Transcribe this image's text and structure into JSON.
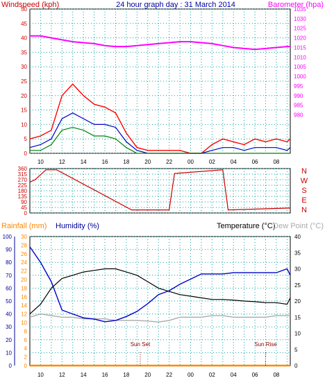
{
  "colors": {
    "wind": "#ff0000",
    "gust_area": "#ff0000",
    "wind_avg": "#0000cc",
    "wind_low": "#008000",
    "barometer": "#ff00ff",
    "direction": "#cc0000",
    "rain": "#ff8800",
    "humidity": "#0000cc",
    "temperature": "#000000",
    "dewpoint": "#aaaaaa",
    "hum_axis": "#000099",
    "grid": "#00a0a0"
  },
  "chart_data": [
    {
      "type": "line",
      "title": "24 hour graph day : 31 March 2014",
      "ylabel": "Windspeed (kph)",
      "y2label": "Barometer (hpa)",
      "ylim": [
        0,
        50
      ],
      "y2lim": [
        960,
        1035
      ],
      "x_ticks": [
        "10",
        "12",
        "14",
        "16",
        "18",
        "20",
        "22",
        "00",
        "02",
        "04",
        "06",
        "08"
      ],
      "y_ticks": [
        "0",
        "5",
        "10",
        "15",
        "20",
        "25",
        "30",
        "35",
        "40",
        "45",
        "50"
      ],
      "y2_ticks": [
        "980",
        "985",
        "990",
        "995",
        "1000",
        "1005",
        "1010",
        "1015",
        "1020",
        "1025",
        "1030",
        "1035"
      ],
      "x_hours": [
        9.0,
        10,
        11,
        12,
        13,
        14,
        15,
        16,
        17,
        18,
        19,
        20,
        21,
        22,
        23,
        24,
        25,
        26,
        27,
        28,
        29,
        30,
        31,
        32,
        33,
        33.3
      ],
      "series": [
        {
          "key": "gust",
          "values": [
            5,
            6,
            8,
            20,
            24,
            20,
            17,
            16,
            14,
            7,
            2,
            1,
            1,
            1,
            1,
            0,
            0,
            3,
            5,
            4,
            3,
            5,
            4,
            5,
            4,
            5
          ]
        },
        {
          "key": "avg",
          "values": [
            2,
            3,
            5,
            12,
            14,
            12,
            10,
            10,
            9,
            4,
            1,
            0,
            0,
            0,
            0,
            0,
            0,
            1,
            2,
            2,
            1,
            2,
            2,
            2,
            1,
            2
          ]
        },
        {
          "key": "low",
          "values": [
            1,
            1,
            3,
            8,
            9,
            8,
            6,
            6,
            5,
            2,
            0,
            0,
            0,
            0,
            0,
            0,
            0,
            0,
            0,
            0,
            0,
            0,
            0,
            0,
            0,
            0
          ]
        },
        {
          "key": "barometer",
          "values": [
            1021,
            1021,
            1020,
            1019,
            1018,
            1017.5,
            1017,
            1016,
            1015.5,
            1015.5,
            1016,
            1016.5,
            1017,
            1017.5,
            1018,
            1018,
            1017.5,
            1017,
            1016,
            1015,
            1014.5,
            1014,
            1014.5,
            1015,
            1015.5,
            1015.5
          ]
        }
      ]
    },
    {
      "type": "line",
      "ylabel_letters": [
        "N",
        "W",
        "S",
        "E",
        "N"
      ],
      "ylim": [
        0,
        360
      ],
      "y_ticks": [
        "0",
        "45",
        "90",
        "135",
        "180",
        "225",
        "270",
        "315",
        "360"
      ],
      "x_ticks": [
        "10",
        "12",
        "14",
        "16",
        "18",
        "20",
        "22",
        "00",
        "02",
        "04",
        "06",
        "08"
      ],
      "x_hours": [
        9.0,
        9.5,
        10.5,
        11,
        11.5,
        18.5,
        22,
        22.5,
        27,
        27.5,
        33.3
      ],
      "series": [
        {
          "key": "direction",
          "values": [
            250,
            270,
            350,
            350,
            350,
            25,
            25,
            320,
            350,
            25,
            40
          ]
        }
      ]
    },
    {
      "type": "line",
      "ylabel_rain": "Rainfall (mm)",
      "ylabel_humidity": "Humidity (%)",
      "y2label_temperature": "Temperature (°C)",
      "y2label_dewpoint": "Dew Point (°C)",
      "rain_ylim": [
        0,
        30
      ],
      "hum_ylim": [
        0,
        100
      ],
      "temp_ylim": [
        0,
        40
      ],
      "rain_ticks": [
        "0",
        "2",
        "4",
        "6",
        "8",
        "10",
        "12",
        "14",
        "16",
        "18",
        "20",
        "22",
        "24",
        "26",
        "28",
        "30"
      ],
      "hum_ticks": [
        "0",
        "10",
        "20",
        "30",
        "40",
        "50",
        "60",
        "70",
        "80",
        "90",
        "100"
      ],
      "temp_ticks": [
        "0",
        "5",
        "10",
        "15",
        "20",
        "25",
        "30",
        "35",
        "40"
      ],
      "x_ticks": [
        "10",
        "12",
        "14",
        "16",
        "18",
        "20",
        "22",
        "00",
        "02",
        "04",
        "06",
        "08"
      ],
      "annotations": [
        {
          "text": "Sun Set",
          "hour": 19.3
        },
        {
          "text": "Sun Rise",
          "hour": 31.0
        }
      ],
      "x_hours": [
        9.0,
        10,
        11,
        12,
        13,
        14,
        15,
        16,
        17,
        18,
        19,
        20,
        21,
        22,
        23,
        24,
        25,
        26,
        27,
        28,
        29,
        30,
        31,
        32,
        33,
        33.3
      ],
      "series": [
        {
          "key": "temperature",
          "values": [
            16,
            19,
            24,
            27,
            28,
            29,
            29.5,
            30,
            30,
            29,
            28,
            26,
            24,
            23,
            22,
            21.5,
            21,
            20.5,
            20.5,
            20.3,
            20,
            19.8,
            19.5,
            19.5,
            19,
            21
          ]
        },
        {
          "key": "dewpoint",
          "values": [
            15,
            16,
            15.5,
            15,
            15,
            14.5,
            14.5,
            14.5,
            14,
            14,
            14,
            13.8,
            13.5,
            14,
            15,
            15,
            15,
            15.5,
            15.5,
            15,
            15,
            15,
            15,
            15.5,
            15.5,
            15.5
          ]
        },
        {
          "key": "humidity",
          "values": [
            92,
            80,
            65,
            43,
            40,
            37,
            36,
            34,
            35,
            38,
            42,
            48,
            55,
            58,
            63,
            67,
            71,
            71,
            71,
            72,
            72,
            72,
            72,
            72,
            75,
            70
          ]
        },
        {
          "key": "rainfall",
          "values": [
            0,
            0,
            0,
            0,
            0,
            0,
            0,
            0,
            0,
            0,
            0,
            0,
            0,
            0,
            0,
            0,
            0,
            0,
            0,
            0,
            0,
            0,
            0,
            0,
            0,
            0
          ]
        }
      ]
    }
  ]
}
